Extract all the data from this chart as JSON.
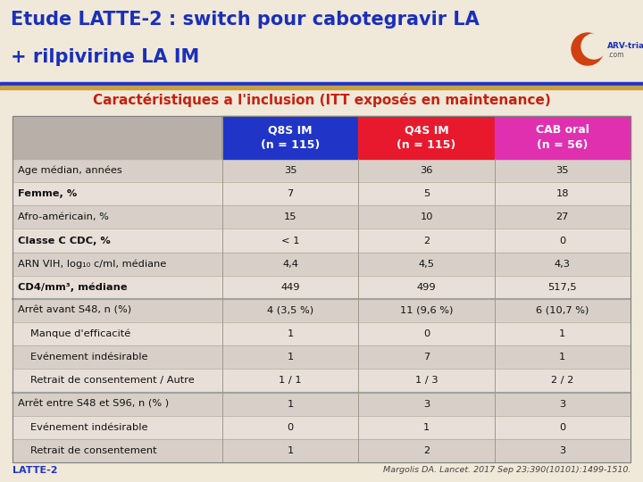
{
  "title_line1": "Etude LATTE-2 : switch pour cabotegravir LA",
  "title_line2": "+ rilpivirine LA IM",
  "subtitle": "Caractéristiques a l'inclusion (ITT exposés en maintenance)",
  "title_bg_color": "#f0e8d8",
  "table_bg_color": "#e8e0d0",
  "col_headers": [
    "Q8S IM\n(n = 115)",
    "Q4S IM\n(n = 115)",
    "CAB oral\n(n = 56)"
  ],
  "col_header_colors": [
    "#2035c8",
    "#e8192c",
    "#e030b0"
  ],
  "rows": [
    {
      "label": "Age médian, années",
      "values": [
        "35",
        "36",
        "35"
      ],
      "bold": false,
      "indent": 0,
      "separator_before": false
    },
    {
      "label": "Femme, %",
      "values": [
        "7",
        "5",
        "18"
      ],
      "bold": true,
      "indent": 0,
      "separator_before": false
    },
    {
      "label": "Afro-américain, %",
      "values": [
        "15",
        "10",
        "27"
      ],
      "bold": false,
      "indent": 0,
      "separator_before": false
    },
    {
      "label": "Classe C CDC, %",
      "values": [
        "< 1",
        "2",
        "0"
      ],
      "bold": true,
      "indent": 0,
      "separator_before": false
    },
    {
      "label": "ARN VIH, log₁₀ c/ml, médiane",
      "values": [
        "4,4",
        "4,5",
        "4,3"
      ],
      "bold": false,
      "indent": 0,
      "separator_before": false
    },
    {
      "label": "CD4/mm³, médiane",
      "values": [
        "449",
        "499",
        "517,5"
      ],
      "bold": true,
      "indent": 0,
      "separator_before": false
    },
    {
      "label": "Arrêt avant S48, n (%)",
      "values": [
        "4 (3,5 %)",
        "11 (9,6 %)",
        "6 (10,7 %)"
      ],
      "bold": false,
      "indent": 0,
      "separator_before": true
    },
    {
      "label": "Manque d'efficacité",
      "values": [
        "1",
        "0",
        "1"
      ],
      "bold": false,
      "indent": 1,
      "separator_before": false
    },
    {
      "label": "Evénement indésirable",
      "values": [
        "1",
        "7",
        "1"
      ],
      "bold": false,
      "indent": 1,
      "separator_before": false
    },
    {
      "label": "Retrait de consentement / Autre",
      "values": [
        "1 / 1",
        "1 / 3",
        "2 / 2"
      ],
      "bold": false,
      "indent": 1,
      "separator_before": false
    },
    {
      "label": "Arrêt entre S48 et S96, n (% )",
      "values": [
        "1",
        "3",
        "3"
      ],
      "bold": false,
      "indent": 0,
      "separator_before": true
    },
    {
      "label": "Evénement indésirable",
      "values": [
        "0",
        "1",
        "0"
      ],
      "bold": false,
      "indent": 1,
      "separator_before": false
    },
    {
      "label": "Retrait de consentement",
      "values": [
        "1",
        "2",
        "3"
      ],
      "bold": false,
      "indent": 1,
      "separator_before": false
    }
  ],
  "stripe_colors": [
    "#d8d0c8",
    "#e8e0d8"
  ],
  "separator_color": "#a0a0a0",
  "divider_blue": "#2035c8",
  "divider_gold": "#c8a040",
  "footer_left": "LATTE-2",
  "footer_right": "Margolis DA. Lancet. 2017 Sep 23;390(10101):1499-1510."
}
